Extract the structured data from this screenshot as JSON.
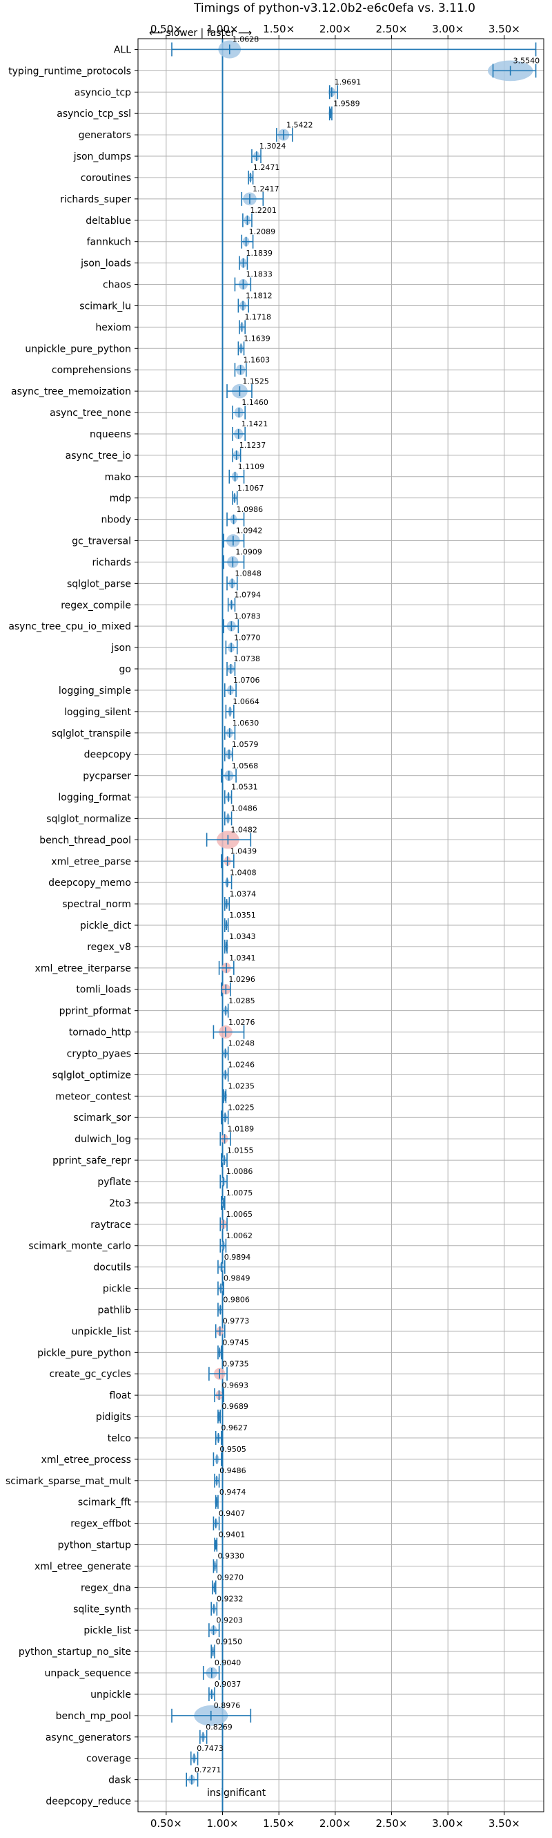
{
  "chart_data": {
    "type": "violin",
    "title": "Timings of python-v3.12.0b2-e6c0efa vs. 3.11.0",
    "xlim": [
      0.25,
      3.85
    ],
    "xticks": [
      0.5,
      1.0,
      1.5,
      2.0,
      2.5,
      3.0,
      3.5
    ],
    "xtick_labels": [
      "0.50×",
      "1.00×",
      "1.50×",
      "2.00×",
      "2.50×",
      "3.00×",
      "3.50×"
    ],
    "grid": true,
    "reference_line": 1.0,
    "direction_annotation": "⟵ slower  |  faster ⟶",
    "insignificant_label": "insignificant",
    "accent_color": "#1f77b4",
    "violin_color": "#a6c8e5",
    "significant_color": "#d62728",
    "benchmarks": [
      {
        "name": "ALL",
        "value": 1.0628,
        "spread": 0.1,
        "errlow": 0.55,
        "errhigh": 3.78
      },
      {
        "name": "typing_runtime_protocols",
        "value": 3.554,
        "spread": 0.2,
        "errlow": 3.4,
        "errhigh": 3.78
      },
      {
        "name": "asyncio_tcp",
        "value": 1.9691,
        "spread": 0.03,
        "errlow": 1.95,
        "errhigh": 2.02
      },
      {
        "name": "asyncio_tcp_ssl",
        "value": 1.9589,
        "spread": 0.01,
        "errlow": 1.95,
        "errhigh": 1.97
      },
      {
        "name": "generators",
        "value": 1.5422,
        "spread": 0.05,
        "errlow": 1.48,
        "errhigh": 1.62
      },
      {
        "name": "json_dumps",
        "value": 1.3024,
        "spread": 0.03,
        "errlow": 1.26,
        "errhigh": 1.34
      },
      {
        "name": "coroutines",
        "value": 1.2471,
        "spread": 0.02,
        "errlow": 1.23,
        "errhigh": 1.27
      },
      {
        "name": "richards_super",
        "value": 1.2417,
        "spread": 0.06,
        "errlow": 1.17,
        "errhigh": 1.36
      },
      {
        "name": "deltablue",
        "value": 1.2201,
        "spread": 0.03,
        "errlow": 1.18,
        "errhigh": 1.26
      },
      {
        "name": "fannkuch",
        "value": 1.2089,
        "spread": 0.03,
        "errlow": 1.17,
        "errhigh": 1.27
      },
      {
        "name": "json_loads",
        "value": 1.1839,
        "spread": 0.03,
        "errlow": 1.15,
        "errhigh": 1.22
      },
      {
        "name": "chaos",
        "value": 1.1833,
        "spread": 0.04,
        "errlow": 1.11,
        "errhigh": 1.25
      },
      {
        "name": "scimark_lu",
        "value": 1.1812,
        "spread": 0.03,
        "errlow": 1.14,
        "errhigh": 1.23
      },
      {
        "name": "hexiom",
        "value": 1.1718,
        "spread": 0.02,
        "errlow": 1.15,
        "errhigh": 1.2
      },
      {
        "name": "unpickle_pure_python",
        "value": 1.1639,
        "spread": 0.02,
        "errlow": 1.14,
        "errhigh": 1.19
      },
      {
        "name": "comprehensions",
        "value": 1.1603,
        "spread": 0.04,
        "errlow": 1.11,
        "errhigh": 1.21
      },
      {
        "name": "async_tree_memoization",
        "value": 1.1525,
        "spread": 0.07,
        "errlow": 1.04,
        "errhigh": 1.26
      },
      {
        "name": "async_tree_none",
        "value": 1.146,
        "spread": 0.04,
        "errlow": 1.09,
        "errhigh": 1.2
      },
      {
        "name": "nqueens",
        "value": 1.1421,
        "spread": 0.04,
        "errlow": 1.09,
        "errhigh": 1.2
      },
      {
        "name": "async_tree_io",
        "value": 1.1237,
        "spread": 0.03,
        "errlow": 1.09,
        "errhigh": 1.16
      },
      {
        "name": "mako",
        "value": 1.1109,
        "spread": 0.03,
        "errlow": 1.06,
        "errhigh": 1.19
      },
      {
        "name": "mdp",
        "value": 1.1067,
        "spread": 0.02,
        "errlow": 1.09,
        "errhigh": 1.13
      },
      {
        "name": "nbody",
        "value": 1.0986,
        "spread": 0.03,
        "errlow": 1.04,
        "errhigh": 1.19
      },
      {
        "name": "gc_traversal",
        "value": 1.0942,
        "spread": 0.06,
        "errlow": 1.01,
        "errhigh": 1.19
      },
      {
        "name": "richards",
        "value": 1.0909,
        "spread": 0.05,
        "errlow": 1.01,
        "errhigh": 1.19
      },
      {
        "name": "sqlglot_parse",
        "value": 1.0848,
        "spread": 0.03,
        "errlow": 1.04,
        "errhigh": 1.13
      },
      {
        "name": "regex_compile",
        "value": 1.0794,
        "spread": 0.02,
        "errlow": 1.05,
        "errhigh": 1.11
      },
      {
        "name": "async_tree_cpu_io_mixed",
        "value": 1.0783,
        "spread": 0.04,
        "errlow": 1.01,
        "errhigh": 1.14
      },
      {
        "name": "json",
        "value": 1.077,
        "spread": 0.03,
        "errlow": 1.03,
        "errhigh": 1.13
      },
      {
        "name": "go",
        "value": 1.0738,
        "spread": 0.03,
        "errlow": 1.04,
        "errhigh": 1.11
      },
      {
        "name": "logging_simple",
        "value": 1.0706,
        "spread": 0.03,
        "errlow": 1.02,
        "errhigh": 1.12
      },
      {
        "name": "logging_silent",
        "value": 1.0664,
        "spread": 0.02,
        "errlow": 1.03,
        "errhigh": 1.1
      },
      {
        "name": "sqlglot_transpile",
        "value": 1.063,
        "spread": 0.03,
        "errlow": 1.02,
        "errhigh": 1.11
      },
      {
        "name": "deepcopy",
        "value": 1.0579,
        "spread": 0.03,
        "errlow": 1.02,
        "errhigh": 1.09
      },
      {
        "name": "pycparser",
        "value": 1.0568,
        "spread": 0.04,
        "errlow": 0.99,
        "errhigh": 1.12
      },
      {
        "name": "logging_format",
        "value": 1.0531,
        "spread": 0.02,
        "errlow": 1.02,
        "errhigh": 1.08
      },
      {
        "name": "sqlglot_normalize",
        "value": 1.0486,
        "spread": 0.02,
        "errlow": 1.02,
        "errhigh": 1.08
      },
      {
        "name": "bench_thread_pool",
        "value": 1.0482,
        "spread": 0.1,
        "errlow": 0.86,
        "errhigh": 1.25
      },
      {
        "name": "xml_etree_parse",
        "value": 1.0439,
        "spread": 0.03,
        "errlow": 0.99,
        "errhigh": 1.1
      },
      {
        "name": "deepcopy_memo",
        "value": 1.0408,
        "spread": 0.02,
        "errlow": 1.0,
        "errhigh": 1.08
      },
      {
        "name": "spectral_norm",
        "value": 1.0374,
        "spread": 0.01,
        "errlow": 1.02,
        "errhigh": 1.06
      },
      {
        "name": "pickle_dict",
        "value": 1.0351,
        "spread": 0.01,
        "errlow": 1.02,
        "errhigh": 1.05
      },
      {
        "name": "regex_v8",
        "value": 1.0343,
        "spread": 0.01,
        "errlow": 1.02,
        "errhigh": 1.04
      },
      {
        "name": "xml_etree_iterparse",
        "value": 1.0341,
        "spread": 0.04,
        "errlow": 0.97,
        "errhigh": 1.1
      },
      {
        "name": "tomli_loads",
        "value": 1.0296,
        "spread": 0.04,
        "errlow": 0.99,
        "errhigh": 1.07
      },
      {
        "name": "pprint_pformat",
        "value": 1.0285,
        "spread": 0.02,
        "errlow": 1.0,
        "errhigh": 1.05
      },
      {
        "name": "tornado_http",
        "value": 1.0276,
        "spread": 0.06,
        "errlow": 0.92,
        "errhigh": 1.19
      },
      {
        "name": "crypto_pyaes",
        "value": 1.0248,
        "spread": 0.02,
        "errlow": 1.0,
        "errhigh": 1.05
      },
      {
        "name": "sqlglot_optimize",
        "value": 1.0246,
        "spread": 0.02,
        "errlow": 1.0,
        "errhigh": 1.05
      },
      {
        "name": "meteor_contest",
        "value": 1.0235,
        "spread": 0.01,
        "errlow": 1.01,
        "errhigh": 1.03
      },
      {
        "name": "scimark_sor",
        "value": 1.0225,
        "spread": 0.02,
        "errlow": 0.99,
        "errhigh": 1.05
      },
      {
        "name": "dulwich_log",
        "value": 1.0189,
        "spread": 0.03,
        "errlow": 0.98,
        "errhigh": 1.07
      },
      {
        "name": "pprint_safe_repr",
        "value": 1.0155,
        "spread": 0.02,
        "errlow": 0.99,
        "errhigh": 1.04
      },
      {
        "name": "pyflate",
        "value": 1.0086,
        "spread": 0.02,
        "errlow": 0.98,
        "errhigh": 1.04
      },
      {
        "name": "2to3",
        "value": 1.0075,
        "spread": 0.01,
        "errlow": 0.99,
        "errhigh": 1.02
      },
      {
        "name": "raytrace",
        "value": 1.0065,
        "spread": 0.03,
        "errlow": 0.98,
        "errhigh": 1.04
      },
      {
        "name": "scimark_monte_carlo",
        "value": 1.0062,
        "spread": 0.02,
        "errlow": 0.98,
        "errhigh": 1.03
      },
      {
        "name": "docutils",
        "value": 0.9894,
        "spread": 0.02,
        "errlow": 0.96,
        "errhigh": 1.02
      },
      {
        "name": "pickle",
        "value": 0.9849,
        "spread": 0.02,
        "errlow": 0.96,
        "errhigh": 1.01
      },
      {
        "name": "pathlib",
        "value": 0.9806,
        "spread": 0.02,
        "errlow": 0.96,
        "errhigh": 1.0
      },
      {
        "name": "unpickle_list",
        "value": 0.9773,
        "spread": 0.03,
        "errlow": 0.94,
        "errhigh": 1.02
      },
      {
        "name": "pickle_pure_python",
        "value": 0.9745,
        "spread": 0.01,
        "errlow": 0.96,
        "errhigh": 0.99
      },
      {
        "name": "create_gc_cycles",
        "value": 0.9735,
        "spread": 0.05,
        "errlow": 0.88,
        "errhigh": 1.04
      },
      {
        "name": "float",
        "value": 0.9693,
        "spread": 0.03,
        "errlow": 0.93,
        "errhigh": 1.01
      },
      {
        "name": "pidigits",
        "value": 0.9689,
        "spread": 0.01,
        "errlow": 0.96,
        "errhigh": 0.98
      },
      {
        "name": "telco",
        "value": 0.9627,
        "spread": 0.02,
        "errlow": 0.94,
        "errhigh": 0.99
      },
      {
        "name": "xml_etree_process",
        "value": 0.9505,
        "spread": 0.02,
        "errlow": 0.92,
        "errhigh": 0.99
      },
      {
        "name": "scimark_sparse_mat_mult",
        "value": 0.9486,
        "spread": 0.02,
        "errlow": 0.93,
        "errhigh": 0.97
      },
      {
        "name": "scimark_fft",
        "value": 0.9474,
        "spread": 0.01,
        "errlow": 0.94,
        "errhigh": 0.96
      },
      {
        "name": "regex_effbot",
        "value": 0.9407,
        "spread": 0.02,
        "errlow": 0.92,
        "errhigh": 0.97
      },
      {
        "name": "python_startup",
        "value": 0.9401,
        "spread": 0.01,
        "errlow": 0.93,
        "errhigh": 0.95
      },
      {
        "name": "xml_etree_generate",
        "value": 0.933,
        "spread": 0.01,
        "errlow": 0.92,
        "errhigh": 0.95
      },
      {
        "name": "regex_dna",
        "value": 0.927,
        "spread": 0.01,
        "errlow": 0.91,
        "errhigh": 0.94
      },
      {
        "name": "sqlite_synth",
        "value": 0.9232,
        "spread": 0.02,
        "errlow": 0.9,
        "errhigh": 0.95
      },
      {
        "name": "pickle_list",
        "value": 0.9203,
        "spread": 0.03,
        "errlow": 0.88,
        "errhigh": 0.97
      },
      {
        "name": "python_startup_no_site",
        "value": 0.915,
        "spread": 0.01,
        "errlow": 0.9,
        "errhigh": 0.93
      },
      {
        "name": "unpack_sequence",
        "value": 0.904,
        "spread": 0.05,
        "errlow": 0.83,
        "errhigh": 0.97
      },
      {
        "name": "unpickle",
        "value": 0.9037,
        "spread": 0.02,
        "errlow": 0.88,
        "errhigh": 0.93
      },
      {
        "name": "bench_mp_pool",
        "value": 0.8976,
        "spread": 0.15,
        "errlow": 0.55,
        "errhigh": 1.25
      },
      {
        "name": "async_generators",
        "value": 0.8269,
        "spread": 0.02,
        "errlow": 0.8,
        "errhigh": 0.86
      },
      {
        "name": "coverage",
        "value": 0.7473,
        "spread": 0.02,
        "errlow": 0.72,
        "errhigh": 0.78
      },
      {
        "name": "dask",
        "value": 0.7271,
        "spread": 0.03,
        "errlow": 0.68,
        "errhigh": 0.78
      },
      {
        "name": "deepcopy_reduce",
        "value": null
      }
    ]
  }
}
